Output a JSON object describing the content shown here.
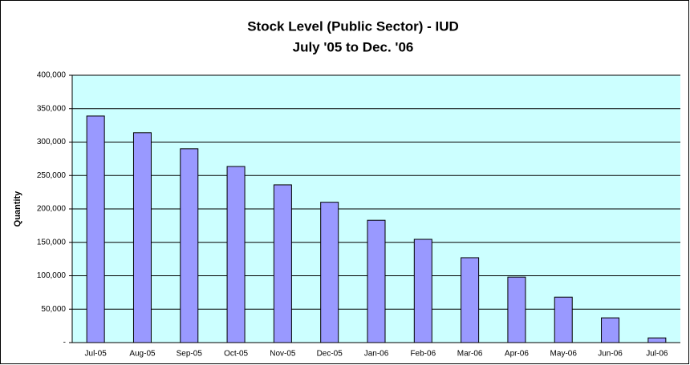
{
  "chart_data": {
    "type": "bar",
    "title": "Stock Level (Public Sector) - IUD",
    "subtitle": "July '05 to Dec. '06",
    "y_label": "Quantity",
    "categories": [
      "Jul-05",
      "Aug-05",
      "Sep-05",
      "Oct-05",
      "Nov-05",
      "Dec-05",
      "Jan-06",
      "Feb-06",
      "Mar-06",
      "Apr-06",
      "May-06",
      "Jun-06",
      "Jul-06"
    ],
    "values": [
      339000,
      314000,
      290000,
      263500,
      236000,
      210000,
      183000,
      154500,
      127000,
      98000,
      68000,
      37000,
      7000
    ],
    "color": "#9999ff",
    "ylim": [
      0,
      400000
    ],
    "yticks": [
      {
        "value": 0,
        "label": "-"
      },
      {
        "value": 50000,
        "label": "50,000"
      },
      {
        "value": 100000,
        "label": "100,000"
      },
      {
        "value": 150000,
        "label": "150,000"
      },
      {
        "value": 200000,
        "label": "200,000"
      },
      {
        "value": 250000,
        "label": "250,000"
      },
      {
        "value": 300000,
        "label": "300,000"
      },
      {
        "value": 350000,
        "label": "350,000"
      },
      {
        "value": 400000,
        "label": "400,000"
      }
    ],
    "grid": true
  }
}
